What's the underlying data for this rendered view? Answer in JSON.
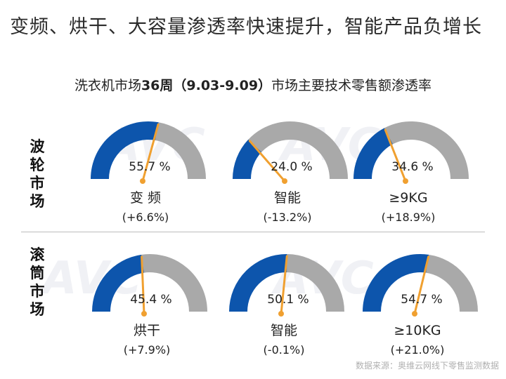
{
  "page_title": "变频、烘干、大容量渗透率快速提升，智能产品负增长",
  "chart_title": {
    "prefix": "洗衣机市场",
    "bold": "36周（9.03-9.09）",
    "suffix": "市场主要技术零售额渗透率"
  },
  "source": "数据来源：奥维云网线下零售监测数据",
  "watermark": "AVC",
  "colors": {
    "filled": "#0d55ac",
    "empty": "#a9a9a9",
    "needle": "#f0a030"
  },
  "chart_data": {
    "type": "gauge",
    "unit": "%",
    "rows": [
      {
        "label": "波轮市场",
        "gauges": [
          {
            "name": "变 频",
            "value": 55.7,
            "value_label": "55.7 %",
            "change_label": "(+6.6%)"
          },
          {
            "name": "智能",
            "value": 24.0,
            "value_label": "24.0 %",
            "change_label": "(-13.2%)"
          },
          {
            "name": "≥9KG",
            "value": 34.6,
            "value_label": "34.6 %",
            "change_label": "(+18.9%)"
          }
        ]
      },
      {
        "label": "滚筒市场",
        "gauges": [
          {
            "name": "烘干",
            "value": 45.4,
            "value_label": "45.4 %",
            "change_label": "(+7.9%)"
          },
          {
            "name": "智能",
            "value": 50.1,
            "value_label": "50.1 %",
            "change_label": "(-0.1%)"
          },
          {
            "name": "≥10KG",
            "value": 54.7,
            "value_label": "54.7 %",
            "change_label": "(+21.0%)"
          }
        ]
      }
    ]
  }
}
